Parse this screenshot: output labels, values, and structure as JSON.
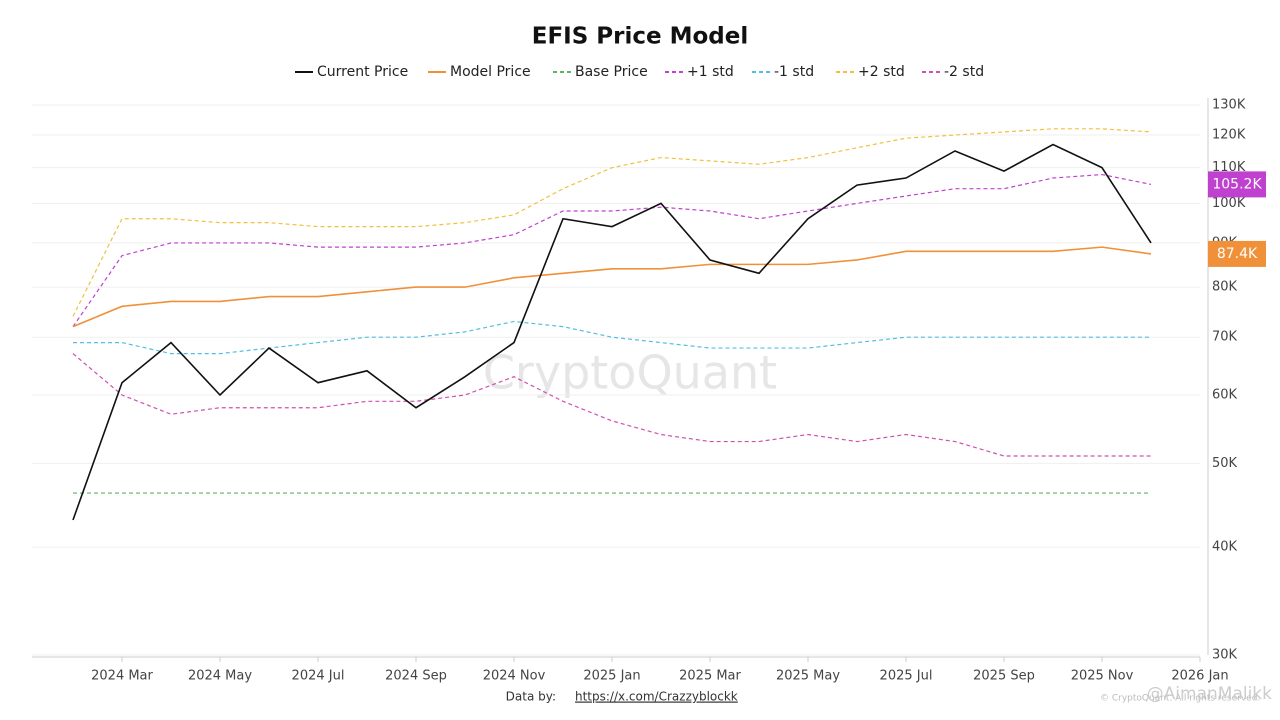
{
  "chart_data": {
    "type": "line",
    "title": "EFIS Price Model",
    "log_y": true,
    "grid": true,
    "legend": "top",
    "x": [
      "2024-02",
      "2024-03",
      "2024-04",
      "2024-05",
      "2024-06",
      "2024-07",
      "2024-08",
      "2024-09",
      "2024-10",
      "2024-11",
      "2024-12",
      "2025-01",
      "2025-02",
      "2025-03",
      "2025-04",
      "2025-05",
      "2025-06",
      "2025-07",
      "2025-08",
      "2025-09",
      "2025-10",
      "2025-11",
      "2025-12"
    ],
    "xlim": [
      "2024-01",
      "2026-01"
    ],
    "xticks": [
      {
        "value": "2024-03",
        "label": "2024 Mar"
      },
      {
        "value": "2024-05",
        "label": "2024 May"
      },
      {
        "value": "2024-07",
        "label": "2024 Jul"
      },
      {
        "value": "2024-09",
        "label": "2024 Sep"
      },
      {
        "value": "2024-11",
        "label": "2024 Nov"
      },
      {
        "value": "2025-01",
        "label": "2025 Jan"
      },
      {
        "value": "2025-03",
        "label": "2025 Mar"
      },
      {
        "value": "2025-05",
        "label": "2025 May"
      },
      {
        "value": "2025-07",
        "label": "2025 Jul"
      },
      {
        "value": "2025-09",
        "label": "2025 Sep"
      },
      {
        "value": "2025-11",
        "label": "2025 Nov"
      },
      {
        "value": "2026-01",
        "label": "2026 Jan"
      }
    ],
    "ylim": [
      30000,
      130000
    ],
    "yticks": [
      {
        "value": 30000,
        "label": "30K"
      },
      {
        "value": 40000,
        "label": "40K"
      },
      {
        "value": 50000,
        "label": "50K"
      },
      {
        "value": 60000,
        "label": "60K"
      },
      {
        "value": 70000,
        "label": "70K"
      },
      {
        "value": 80000,
        "label": "80K"
      },
      {
        "value": 90000,
        "label": "90K"
      },
      {
        "value": 100000,
        "label": "100K"
      },
      {
        "value": 110000,
        "label": "110K"
      },
      {
        "value": 120000,
        "label": "120K"
      },
      {
        "value": 130000,
        "label": "130K"
      }
    ],
    "series": [
      {
        "name": "Current Price",
        "color": "#111111",
        "dashed": false,
        "values": [
          43000,
          62000,
          69000,
          60000,
          68000,
          62000,
          64000,
          58000,
          63000,
          69000,
          96000,
          94000,
          100000,
          86000,
          83000,
          96000,
          105000,
          107000,
          115000,
          109000,
          117000,
          110000,
          90000
        ]
      },
      {
        "name": "Model Price",
        "color": "#f0913a",
        "dashed": false,
        "values": [
          72000,
          76000,
          77000,
          77000,
          78000,
          78000,
          79000,
          80000,
          80000,
          82000,
          83000,
          84000,
          84000,
          85000,
          85000,
          85000,
          86000,
          88000,
          88000,
          88000,
          88000,
          89000,
          87400
        ],
        "end_label": "87.4K"
      },
      {
        "name": "Base Price",
        "color": "#5cb85c",
        "dashed": true,
        "values": [
          46200,
          46200,
          46200,
          46200,
          46200,
          46200,
          46200,
          46200,
          46200,
          46200,
          46200,
          46200,
          46200,
          46200,
          46200,
          46200,
          46200,
          46200,
          46200,
          46200,
          46200,
          46200,
          46200
        ]
      },
      {
        "name": "+1 std",
        "color": "#c040d0",
        "dashed": true,
        "values": [
          72000,
          87000,
          90000,
          90000,
          90000,
          89000,
          89000,
          89000,
          90000,
          92000,
          98000,
          98000,
          99000,
          98000,
          96000,
          98000,
          100000,
          102000,
          104000,
          104000,
          107000,
          108000,
          105200
        ],
        "end_label": "105.2K"
      },
      {
        "name": "-1 std",
        "color": "#50c0e0",
        "dashed": true,
        "values": [
          69000,
          69000,
          67000,
          67000,
          68000,
          69000,
          70000,
          70000,
          71000,
          73000,
          72000,
          70000,
          69000,
          68000,
          68000,
          68000,
          69000,
          70000,
          70000,
          70000,
          70000,
          70000,
          70000
        ]
      },
      {
        "name": "+2 std",
        "color": "#f0c040",
        "dashed": true,
        "values": [
          74000,
          96000,
          96000,
          95000,
          95000,
          94000,
          94000,
          94000,
          95000,
          97000,
          104000,
          110000,
          113000,
          112000,
          111000,
          113000,
          116000,
          119000,
          120000,
          121000,
          122000,
          122000,
          121000
        ]
      },
      {
        "name": "-2 std",
        "color": "#d050b0",
        "dashed": true,
        "values": [
          67000,
          60000,
          57000,
          58000,
          58000,
          58000,
          59000,
          59000,
          60000,
          63000,
          59000,
          56000,
          54000,
          53000,
          53000,
          54000,
          53000,
          54000,
          53000,
          51000,
          51000,
          51000,
          51000
        ]
      }
    ],
    "watermark": "CryptoQuant",
    "footer": {
      "prefix": "Data by:",
      "link": "https://x.com/Crazzyblockk",
      "copyright": "© CryptoQuant. All rights reserved.",
      "credit": "@AimanMalikk"
    }
  }
}
